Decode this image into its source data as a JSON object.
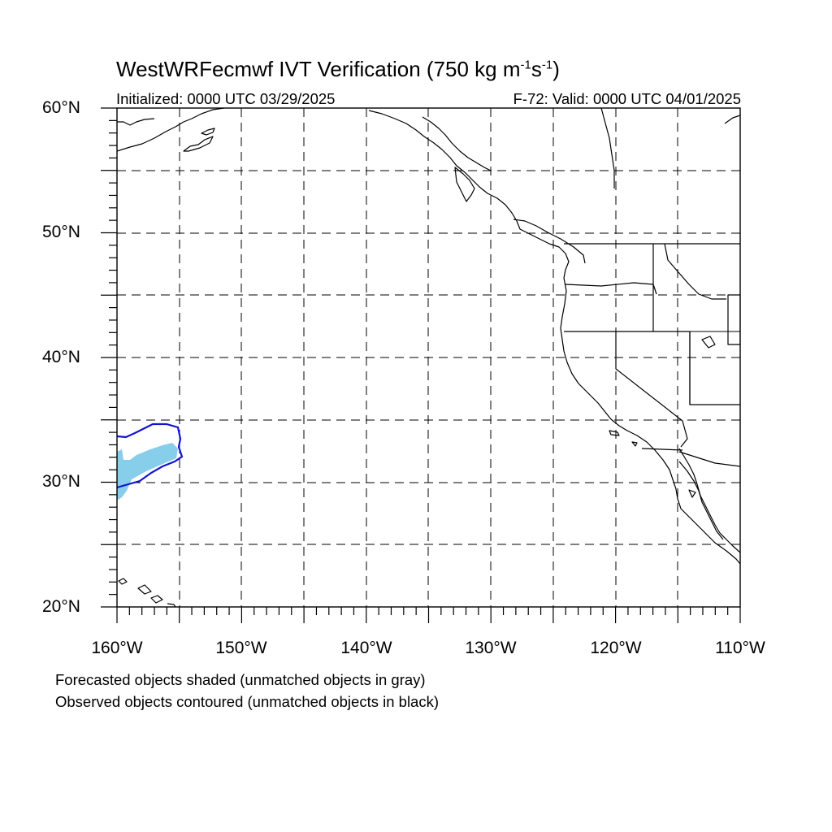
{
  "title": {
    "prefix": "WestWRFecmwf IVT Verification (750 kg m",
    "exp1": "-1",
    "mid": "s",
    "exp2": "-1",
    "suffix": ")"
  },
  "initialized": "Initialized: 0000 UTC 03/29/2025",
  "valid": "F-72: Valid: 0000 UTC 04/01/2025",
  "lat_labels": [
    "60°N",
    "50°N",
    "40°N",
    "30°N",
    "20°N"
  ],
  "lon_labels": [
    "160°W",
    "150°W",
    "140°W",
    "130°W",
    "120°W",
    "110°W"
  ],
  "footnotes": [
    "Forecasted objects shaded (unmatched objects in gray)",
    "Observed objects contoured (unmatched objects in black)"
  ],
  "colors": {
    "forecast_object": "#87ceeb",
    "observed_object": "#1414d2",
    "coastline": "#000000",
    "grid": "#000000"
  },
  "map_extent": {
    "lon": [
      -160,
      -110
    ],
    "lat": [
      20,
      60
    ]
  }
}
